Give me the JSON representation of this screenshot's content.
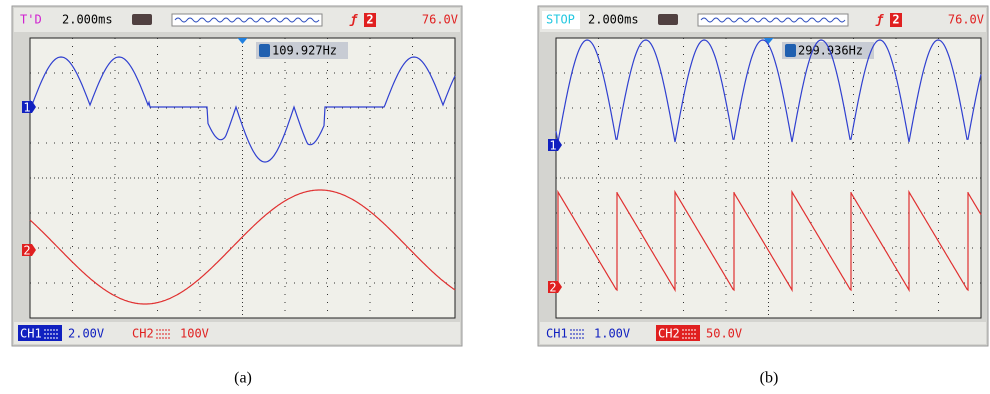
{
  "panels": [
    {
      "status": "T'D",
      "timebase": "2.000ms",
      "trigger_channel": "2",
      "trigger_level": "76.0V",
      "frequency": "109.927Hz",
      "ch1_marker": "1",
      "ch2_marker": "2",
      "ch1_label": "CH1",
      "ch1_scale": "2.00V",
      "ch2_label": "CH2",
      "ch2_scale": "100V",
      "caption": "(a)"
    },
    {
      "status": "STOP",
      "timebase": "2.000ms",
      "trigger_channel": "2",
      "trigger_level": "76.0V",
      "frequency": "299.936Hz",
      "ch1_marker": "1",
      "ch2_marker": "2",
      "ch1_label": "CH1",
      "ch1_scale": "1.00V",
      "ch2_label": "CH2",
      "ch2_scale": "50.0V",
      "caption": "(b)"
    }
  ]
}
